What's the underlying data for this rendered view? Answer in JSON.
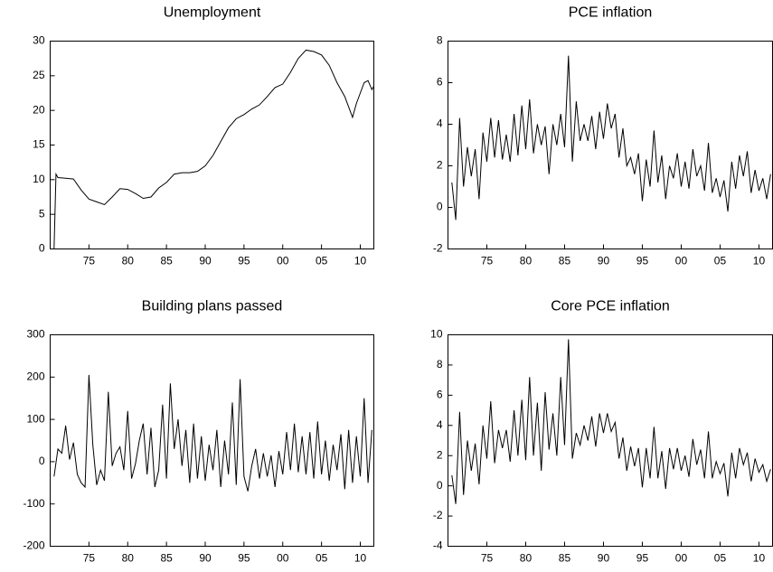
{
  "chart_data": [
    {
      "type": "line",
      "title": "Unemployment",
      "color": "#000000",
      "x": [
        1970.5,
        1970.75,
        1971,
        1972,
        1973,
        1974,
        1975,
        1976,
        1977,
        1978,
        1979,
        1980,
        1981,
        1982,
        1983,
        1984,
        1985,
        1986,
        1987,
        1988,
        1989,
        1990,
        1991,
        1992,
        1993,
        1994,
        1995,
        1996,
        1997,
        1998,
        1999,
        2000,
        2001,
        2002,
        2003,
        2004,
        2005,
        2006,
        2007,
        2008,
        2008.5,
        2009,
        2009.5,
        2010,
        2010.5,
        2011,
        2011.5,
        2011.75
      ],
      "values": [
        0,
        10.8,
        10.3,
        10.2,
        10.1,
        8.5,
        7.2,
        6.8,
        6.4,
        7.5,
        8.7,
        8.6,
        8.0,
        7.3,
        7.5,
        8.8,
        9.6,
        10.8,
        11.0,
        11.0,
        11.2,
        12.0,
        13.5,
        15.5,
        17.5,
        18.8,
        19.4,
        20.2,
        20.8,
        22.0,
        23.3,
        23.8,
        25.5,
        27.5,
        28.7,
        28.5,
        28.0,
        26.5,
        24.0,
        22.0,
        20.5,
        19.0,
        21.0,
        22.5,
        24.0,
        24.3,
        23.0,
        23.5
      ],
      "xlim": [
        1970,
        2011.75
      ],
      "ylim": [
        0,
        30
      ],
      "yticks": [
        0,
        5,
        10,
        15,
        20,
        25,
        30
      ],
      "xticks": [
        {
          "value": 1975,
          "label": "75"
        },
        {
          "value": 1980,
          "label": "80"
        },
        {
          "value": 1985,
          "label": "85"
        },
        {
          "value": 1990,
          "label": "90"
        },
        {
          "value": 1995,
          "label": "95"
        },
        {
          "value": 2000,
          "label": "00"
        },
        {
          "value": 2005,
          "label": "05"
        },
        {
          "value": 2010,
          "label": "10"
        }
      ]
    },
    {
      "type": "line",
      "title": "PCE inflation",
      "color": "#000000",
      "x": [
        1970.5,
        1971,
        1971.5,
        1972,
        1972.5,
        1973,
        1973.5,
        1974,
        1974.5,
        1975,
        1975.5,
        1976,
        1976.5,
        1977,
        1977.5,
        1978,
        1978.5,
        1979,
        1979.5,
        1980,
        1980.5,
        1981,
        1981.5,
        1982,
        1982.5,
        1983,
        1983.5,
        1984,
        1984.5,
        1985,
        1985.5,
        1986,
        1986.5,
        1987,
        1987.5,
        1988,
        1988.5,
        1989,
        1989.5,
        1990,
        1990.5,
        1991,
        1991.5,
        1992,
        1992.5,
        1993,
        1993.5,
        1994,
        1994.5,
        1995,
        1995.5,
        1996,
        1996.5,
        1997,
        1997.5,
        1998,
        1998.5,
        1999,
        1999.5,
        2000,
        2000.5,
        2001,
        2001.5,
        2002,
        2002.5,
        2003,
        2003.5,
        2004,
        2004.5,
        2005,
        2005.5,
        2006,
        2006.5,
        2007,
        2007.5,
        2008,
        2008.5,
        2009,
        2009.5,
        2010,
        2010.5,
        2011,
        2011.5
      ],
      "values": [
        1.2,
        -0.6,
        4.3,
        1.0,
        2.9,
        1.5,
        2.8,
        0.4,
        3.6,
        2.2,
        4.3,
        2.4,
        4.2,
        2.3,
        3.5,
        2.2,
        4.5,
        2.5,
        4.9,
        2.8,
        5.2,
        2.6,
        4.0,
        3.0,
        3.9,
        1.6,
        4.0,
        3.0,
        4.5,
        2.9,
        7.3,
        2.2,
        5.1,
        3.2,
        4.0,
        3.2,
        4.4,
        2.8,
        4.6,
        3.3,
        5.0,
        3.8,
        4.5,
        2.4,
        3.8,
        2.0,
        2.4,
        1.6,
        2.6,
        0.3,
        2.3,
        1.0,
        3.7,
        1.2,
        2.5,
        0.4,
        2.0,
        1.4,
        2.6,
        1.0,
        2.2,
        0.9,
        2.8,
        1.5,
        2.0,
        0.8,
        3.1,
        0.7,
        1.4,
        0.5,
        1.3,
        -0.2,
        2.2,
        0.9,
        2.5,
        1.5,
        2.7,
        0.7,
        1.8,
        0.8,
        1.4,
        0.4,
        1.6
      ],
      "xlim": [
        1970,
        2011.75
      ],
      "ylim": [
        -2,
        8
      ],
      "yticks": [
        -2,
        0,
        2,
        4,
        6,
        8
      ],
      "xticks": [
        {
          "value": 1975,
          "label": "75"
        },
        {
          "value": 1980,
          "label": "80"
        },
        {
          "value": 1985,
          "label": "85"
        },
        {
          "value": 1990,
          "label": "90"
        },
        {
          "value": 1995,
          "label": "95"
        },
        {
          "value": 2000,
          "label": "00"
        },
        {
          "value": 2005,
          "label": "05"
        },
        {
          "value": 2010,
          "label": "10"
        }
      ]
    },
    {
      "type": "line",
      "title": "Building plans passed",
      "color": "#000000",
      "x": [
        1970.5,
        1971,
        1971.5,
        1972,
        1972.5,
        1973,
        1973.5,
        1974,
        1974.5,
        1975,
        1975.5,
        1976,
        1976.5,
        1977,
        1977.5,
        1978,
        1978.5,
        1979,
        1979.5,
        1980,
        1980.5,
        1981,
        1981.5,
        1982,
        1982.5,
        1983,
        1983.5,
        1984,
        1984.5,
        1985,
        1985.5,
        1986,
        1986.5,
        1987,
        1987.5,
        1988,
        1988.5,
        1989,
        1989.5,
        1990,
        1990.5,
        1991,
        1991.5,
        1992,
        1992.5,
        1993,
        1993.5,
        1994,
        1994.5,
        1995,
        1995.5,
        1996,
        1996.5,
        1997,
        1997.5,
        1998,
        1998.5,
        1999,
        1999.5,
        2000,
        2000.5,
        2001,
        2001.5,
        2002,
        2002.5,
        2003,
        2003.5,
        2004,
        2004.5,
        2005,
        2005.5,
        2006,
        2006.5,
        2007,
        2007.5,
        2008,
        2008.5,
        2009,
        2009.5,
        2010,
        2010.5,
        2011,
        2011.5
      ],
      "values": [
        -35,
        30,
        20,
        85,
        5,
        45,
        -30,
        -50,
        -60,
        205,
        40,
        -55,
        -20,
        -45,
        165,
        -10,
        20,
        35,
        -20,
        120,
        -40,
        -5,
        50,
        90,
        -30,
        80,
        -60,
        -20,
        135,
        -40,
        185,
        30,
        100,
        -10,
        75,
        -50,
        90,
        -40,
        60,
        -45,
        40,
        -20,
        75,
        -60,
        50,
        -30,
        140,
        -55,
        195,
        -35,
        -70,
        -10,
        30,
        -40,
        20,
        -35,
        15,
        -60,
        25,
        -30,
        70,
        -20,
        90,
        -25,
        60,
        -30,
        70,
        -40,
        95,
        -30,
        50,
        -45,
        40,
        -20,
        65,
        -65,
        75,
        -50,
        60,
        -35,
        150,
        -50,
        75
      ],
      "xlim": [
        1970,
        2011.75
      ],
      "ylim": [
        -200,
        300
      ],
      "yticks": [
        -200,
        -100,
        0,
        100,
        200,
        300
      ],
      "xticks": [
        {
          "value": 1975,
          "label": "75"
        },
        {
          "value": 1980,
          "label": "80"
        },
        {
          "value": 1985,
          "label": "85"
        },
        {
          "value": 1990,
          "label": "90"
        },
        {
          "value": 1995,
          "label": "95"
        },
        {
          "value": 2000,
          "label": "00"
        },
        {
          "value": 2005,
          "label": "05"
        },
        {
          "value": 2010,
          "label": "10"
        }
      ]
    },
    {
      "type": "line",
      "title": "Core PCE inflation",
      "color": "#000000",
      "x": [
        1970.5,
        1971,
        1971.5,
        1972,
        1972.5,
        1973,
        1973.5,
        1974,
        1974.5,
        1975,
        1975.5,
        1976,
        1976.5,
        1977,
        1977.5,
        1978,
        1978.5,
        1979,
        1979.5,
        1980,
        1980.5,
        1981,
        1981.5,
        1982,
        1982.5,
        1983,
        1983.5,
        1984,
        1984.5,
        1985,
        1985.5,
        1986,
        1986.5,
        1987,
        1987.5,
        1988,
        1988.5,
        1989,
        1989.5,
        1990,
        1990.5,
        1991,
        1991.5,
        1992,
        1992.5,
        1993,
        1993.5,
        1994,
        1994.5,
        1995,
        1995.5,
        1996,
        1996.5,
        1997,
        1997.5,
        1998,
        1998.5,
        1999,
        1999.5,
        2000,
        2000.5,
        2001,
        2001.5,
        2002,
        2002.5,
        2003,
        2003.5,
        2004,
        2004.5,
        2005,
        2005.5,
        2006,
        2006.5,
        2007,
        2007.5,
        2008,
        2008.5,
        2009,
        2009.5,
        2010,
        2010.5,
        2011,
        2011.5
      ],
      "values": [
        0.7,
        -1.2,
        4.9,
        -0.6,
        3.0,
        1.0,
        2.8,
        0.1,
        4.0,
        1.8,
        5.6,
        1.5,
        3.7,
        2.5,
        3.7,
        1.6,
        5.0,
        2.0,
        5.7,
        1.7,
        7.2,
        2.0,
        5.5,
        1.0,
        6.2,
        2.4,
        4.8,
        2.0,
        7.2,
        2.7,
        9.7,
        1.8,
        3.5,
        2.7,
        4.0,
        3.0,
        4.6,
        2.6,
        4.8,
        3.5,
        4.8,
        3.6,
        4.2,
        1.8,
        3.2,
        1.0,
        2.6,
        1.3,
        2.5,
        -0.1,
        2.5,
        0.5,
        3.9,
        0.5,
        2.3,
        -0.2,
        2.5,
        1.1,
        2.5,
        1.0,
        2.0,
        0.6,
        3.1,
        1.4,
        2.4,
        0.5,
        3.6,
        0.5,
        1.6,
        0.8,
        1.5,
        -0.7,
        2.2,
        0.5,
        2.5,
        1.4,
        2.2,
        0.3,
        1.8,
        0.9,
        1.4,
        0.3,
        1.1
      ],
      "xlim": [
        1970,
        2011.75
      ],
      "ylim": [
        -4,
        10
      ],
      "yticks": [
        -4,
        -2,
        0,
        2,
        4,
        6,
        8,
        10
      ],
      "xticks": [
        {
          "value": 1975,
          "label": "75"
        },
        {
          "value": 1980,
          "label": "80"
        },
        {
          "value": 1985,
          "label": "85"
        },
        {
          "value": 1990,
          "label": "90"
        },
        {
          "value": 1995,
          "label": "95"
        },
        {
          "value": 2000,
          "label": "00"
        },
        {
          "value": 2005,
          "label": "05"
        },
        {
          "value": 2010,
          "label": "10"
        }
      ]
    }
  ]
}
